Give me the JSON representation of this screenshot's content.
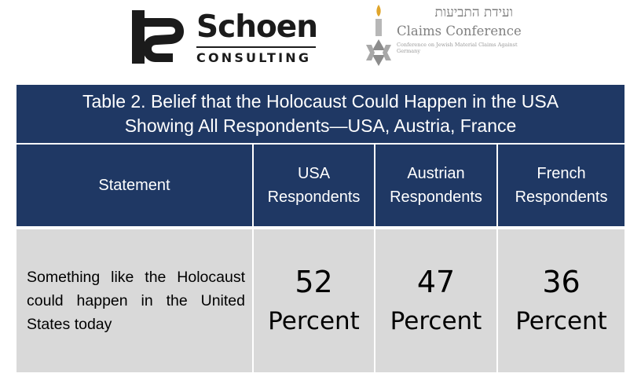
{
  "logos": {
    "schoen": {
      "name": "Schoen",
      "sub": "CONSULTING"
    },
    "claims": {
      "hebrew": "ועידת התביעות",
      "name": "Claims Conference",
      "fine": "Conference on Jewish Material Claims Against Germany"
    }
  },
  "table": {
    "title_line1": "Table 2. Belief that the Holocaust Could Happen in the USA",
    "title_line2": "Showing All Respondents—USA, Austria, France",
    "headers": [
      {
        "line1": "Statement",
        "line2": ""
      },
      {
        "line1": "USA",
        "line2": "Respondents"
      },
      {
        "line1": "Austrian",
        "line2": "Respondents"
      },
      {
        "line1": "French",
        "line2": "Respondents"
      }
    ],
    "rows": [
      {
        "statement": "Something like the Holocaust could happen in the United States today",
        "values": [
          {
            "number": "52",
            "unit": "Percent"
          },
          {
            "number": "47",
            "unit": "Percent"
          },
          {
            "number": "36",
            "unit": "Percent"
          }
        ]
      }
    ]
  },
  "colors": {
    "header_bg": "#1f3864",
    "body_bg": "#d9d9d9",
    "header_text": "#ffffff"
  }
}
